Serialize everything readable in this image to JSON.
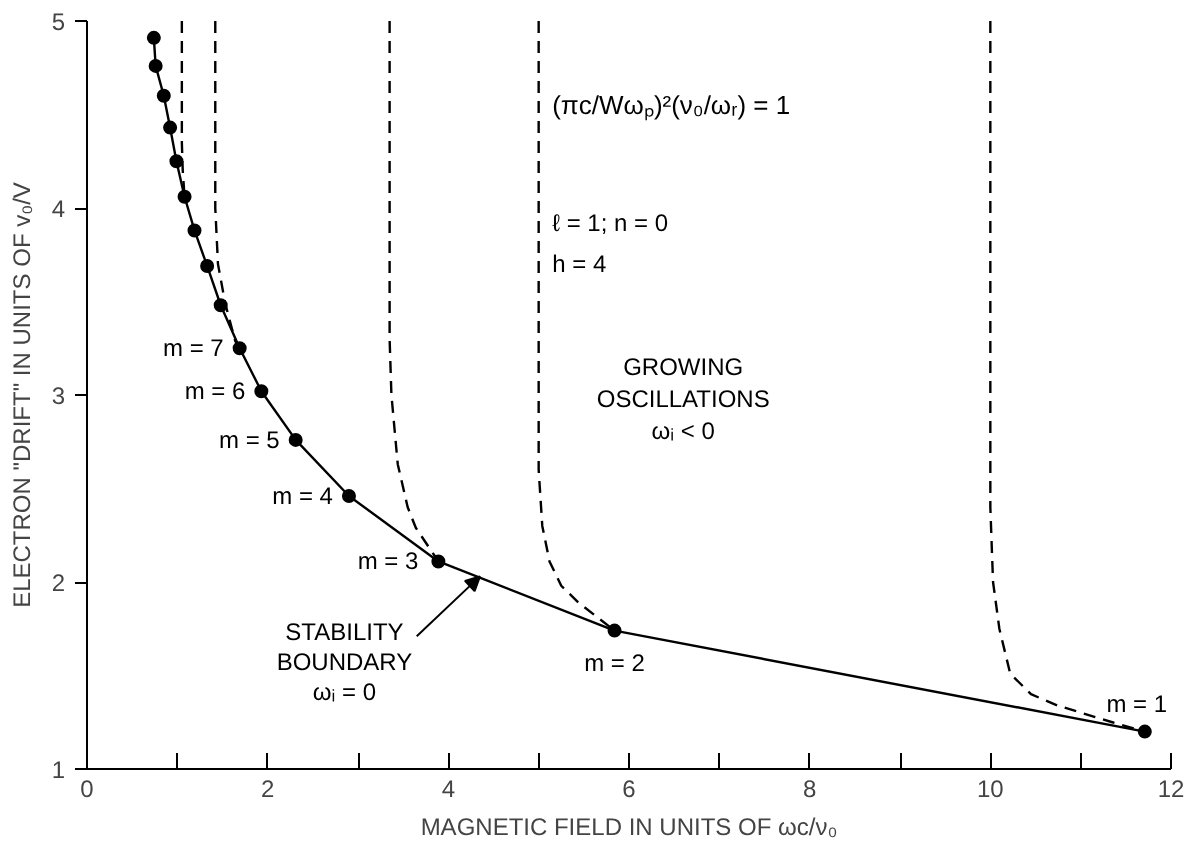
{
  "chart_data": {
    "type": "line",
    "xlabel": "MAGNETIC FIELD IN UNITS OF ωc/ν₀",
    "ylabel": "ELECTRON \"DRIFT\" IN UNITS OF v₀/V",
    "xlim": [
      0,
      12
    ],
    "ylim": [
      1,
      5
    ],
    "xticks": [
      0,
      {
        "value": 1,
        "label": null
      },
      2,
      {
        "value": 3,
        "label": null
      },
      4,
      {
        "value": 5,
        "label": null
      },
      6,
      {
        "value": 7,
        "label": null
      },
      8,
      {
        "value": 9,
        "label": null
      },
      10,
      {
        "value": 11,
        "label": null
      },
      12
    ],
    "yticks": [
      1,
      2,
      3,
      4,
      5
    ],
    "grid": false,
    "series": [
      {
        "color": "#000000",
        "marker": "circle",
        "line_style": "solid",
        "x": [
          0.74,
          0.76,
          0.85,
          0.92,
          0.99,
          1.08,
          1.19,
          1.33,
          1.48,
          1.69,
          1.93,
          2.31,
          2.9,
          3.89,
          5.84,
          11.71
        ],
        "values": [
          4.91,
          4.76,
          4.6,
          4.43,
          4.25,
          4.06,
          3.88,
          3.69,
          3.48,
          3.25,
          3.02,
          2.76,
          2.46,
          2.11,
          1.74,
          1.2
        ]
      },
      {
        "color": "#000000",
        "marker": "none",
        "line_style": "dashed",
        "x": [
          1.05,
          1.05,
          1.06,
          1.08
        ],
        "values": [
          5,
          4.35,
          4.2,
          4.06
        ]
      },
      {
        "color": "#000000",
        "marker": "none",
        "line_style": "dashed",
        "x": [
          1.42,
          1.42,
          1.45,
          1.53,
          1.64,
          1.69
        ],
        "values": [
          5,
          4.0,
          3.7,
          3.49,
          3.29,
          3.25
        ]
      },
      {
        "color": "#000000",
        "marker": "none",
        "line_style": "dashed",
        "x": [
          3.35,
          3.35,
          3.37,
          3.44,
          3.55,
          3.64,
          3.89
        ],
        "values": [
          5,
          3.3,
          3.0,
          2.63,
          2.4,
          2.29,
          2.11
        ]
      },
      {
        "color": "#000000",
        "marker": "none",
        "line_style": "dashed",
        "x": [
          5.0,
          5.0,
          5.04,
          5.12,
          5.25,
          5.44,
          5.84
        ],
        "values": [
          5,
          2.6,
          2.3,
          2.11,
          1.98,
          1.89,
          1.74
        ]
      },
      {
        "color": "#000000",
        "marker": "none",
        "line_style": "dashed",
        "x": [
          10.0,
          10.0,
          10.03,
          10.1,
          10.22,
          10.45,
          10.74,
          11.35,
          11.71
        ],
        "values": [
          5,
          2.4,
          2.0,
          1.75,
          1.51,
          1.4,
          1.34,
          1.25,
          1.2
        ]
      }
    ],
    "annotations": [
      {
        "text": "m = 7",
        "x": 1.69,
        "y": 3.25
      },
      {
        "text": "m = 6",
        "x": 1.93,
        "y": 3.02
      },
      {
        "text": "m = 5",
        "x": 2.31,
        "y": 2.76
      },
      {
        "text": "m = 4",
        "x": 2.9,
        "y": 2.46
      },
      {
        "text": "m = 3",
        "x": 3.89,
        "y": 2.11
      },
      {
        "text": "m = 2",
        "x": 5.84,
        "y": 1.74
      },
      {
        "text": "m = 1",
        "x": 11.71,
        "y": 1.2
      },
      {
        "text": "STABILITY\nBOUNDARY\nωᵢ = 0",
        "x": 4.35,
        "y": 2.03
      },
      "(πc/Wωₚ)²(ν₀/ωᵣ) = 1",
      "ℓ = 1;  n = 0",
      "h = 4",
      "GROWING\nOSCILLATIONS\nωᵢ < 0"
    ]
  }
}
